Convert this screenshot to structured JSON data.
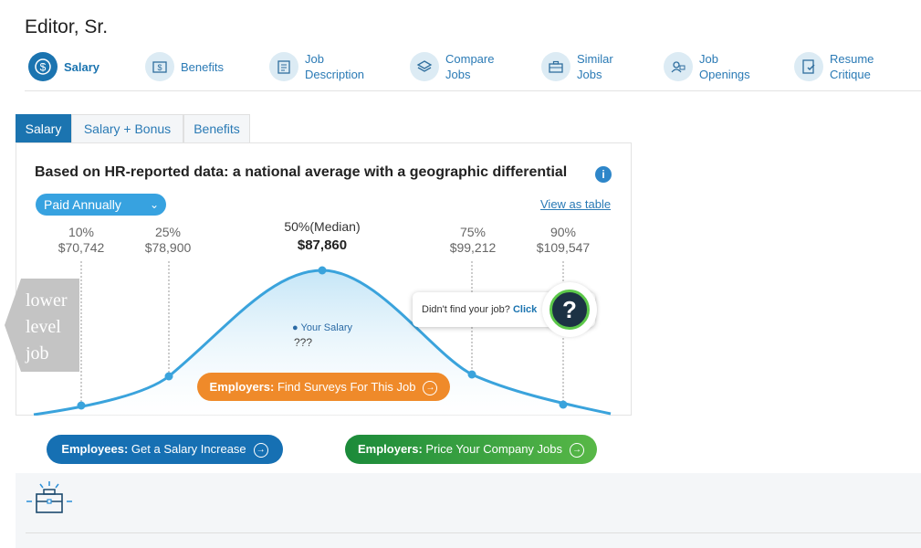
{
  "page": {
    "title": "Editor, Sr."
  },
  "nav": {
    "items": [
      {
        "label": "Salary",
        "icon": "dollar-coin-icon",
        "active": true
      },
      {
        "label": "Benefits",
        "icon": "money-bill-icon"
      },
      {
        "label": "Job\nDescription",
        "icon": "document-icon"
      },
      {
        "label": "Compare\nJobs",
        "icon": "layers-icon"
      },
      {
        "label": "Similar\nJobs",
        "icon": "briefcase-icon"
      },
      {
        "label": "Job\nOpenings",
        "icon": "people-icon"
      },
      {
        "label": "Resume\nCritique",
        "icon": "resume-check-icon"
      }
    ]
  },
  "tabs": [
    {
      "label": "Salary",
      "active": true
    },
    {
      "label": "Salary + Bonus"
    },
    {
      "label": "Benefits"
    }
  ],
  "chart_panel": {
    "heading": "Based on HR-reported data: a national average with a geographic differential",
    "pay_period": "Paid Annually",
    "view_table_link": "View as table",
    "percentiles": [
      {
        "label": "10%",
        "value": "$70,742"
      },
      {
        "label": "25%",
        "value": "$78,900"
      },
      {
        "label": "50%(Median)",
        "value": "$87,860"
      },
      {
        "label": "75%",
        "value": "$99,212"
      },
      {
        "label": "90%",
        "value": "$109,547"
      }
    ],
    "lower_level_label": "lower level job",
    "your_salary_label": "Your Salary",
    "your_salary_value": "???",
    "employers_surveys_prefix": "Employers:",
    "employers_surveys_text": " Find Surveys For This Job",
    "didnt_find_text": "Didn't find your job? ",
    "didnt_find_click": "Click",
    "help_symbol": "?"
  },
  "cta": {
    "employees_prefix": "Employees:",
    "employees_text": " Get a Salary Increase",
    "employers_prefix": "Employers:",
    "employers_text": " Price Your Company Jobs"
  },
  "colors": {
    "primary": "#1b74b0",
    "curve": "#3aa3dc",
    "orange": "#ef8a2a",
    "green": "#1b8a3a"
  }
}
